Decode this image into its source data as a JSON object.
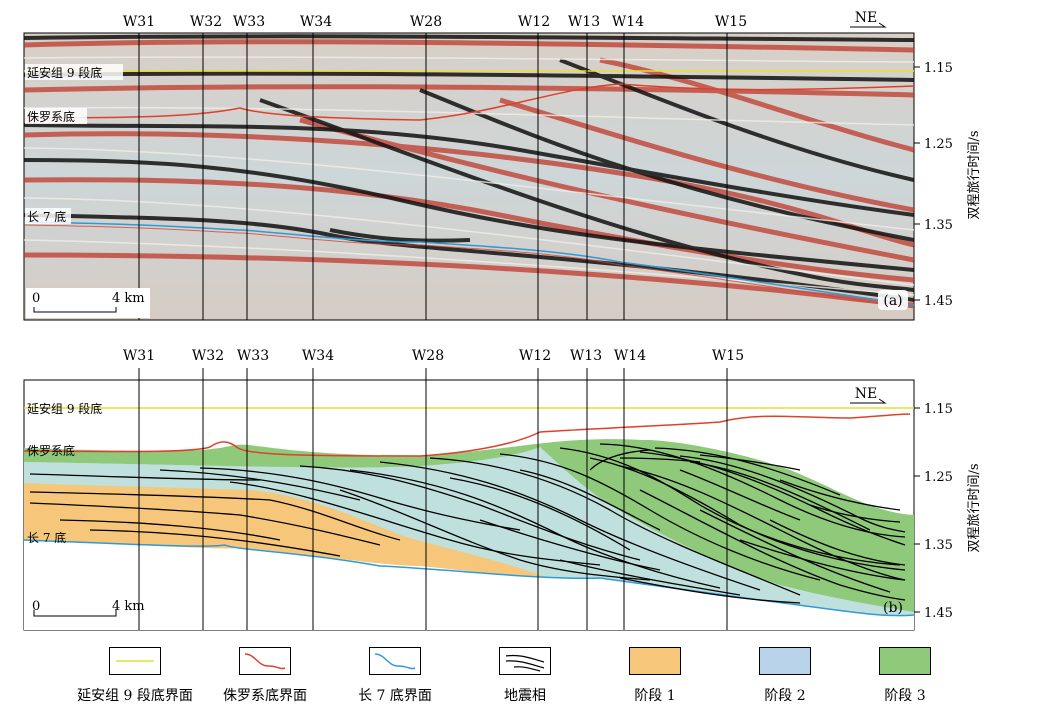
{
  "figure": {
    "direction_label": "NE",
    "panel_a_label": "(a)",
    "panel_b_label": "(b)",
    "scale": {
      "start": "0",
      "end": "4 km"
    },
    "y_axis_title": "双程旅行时间/s",
    "time_ticks": [
      "1.15",
      "1.25",
      "1.35",
      "1.45"
    ],
    "wells": [
      "W31",
      "W32",
      "W33",
      "W34",
      "W28",
      "W12",
      "W13",
      "W14",
      "W15"
    ],
    "horizons": {
      "yanan9": "延安组 9 段底",
      "jurassic": "侏罗系底",
      "chang7": "长 7 底"
    }
  },
  "legend": {
    "items": [
      {
        "label": "延安组 9 段底界面",
        "color": "#e6df35",
        "kind": "line"
      },
      {
        "label": "侏罗系底界面",
        "color": "#e0402a",
        "kind": "curve"
      },
      {
        "label": "长 7 底界面",
        "color": "#2f9ad6",
        "kind": "curve"
      },
      {
        "label": "地震相",
        "color": "#000000",
        "kind": "facies"
      },
      {
        "label": "阶段 1",
        "color": "#f6c77b",
        "kind": "fill"
      },
      {
        "label": "阶段 2",
        "color": "#b9d3ea",
        "kind": "fill"
      },
      {
        "label": "阶段 3",
        "color": "#8fc97a",
        "kind": "fill"
      }
    ]
  }
}
